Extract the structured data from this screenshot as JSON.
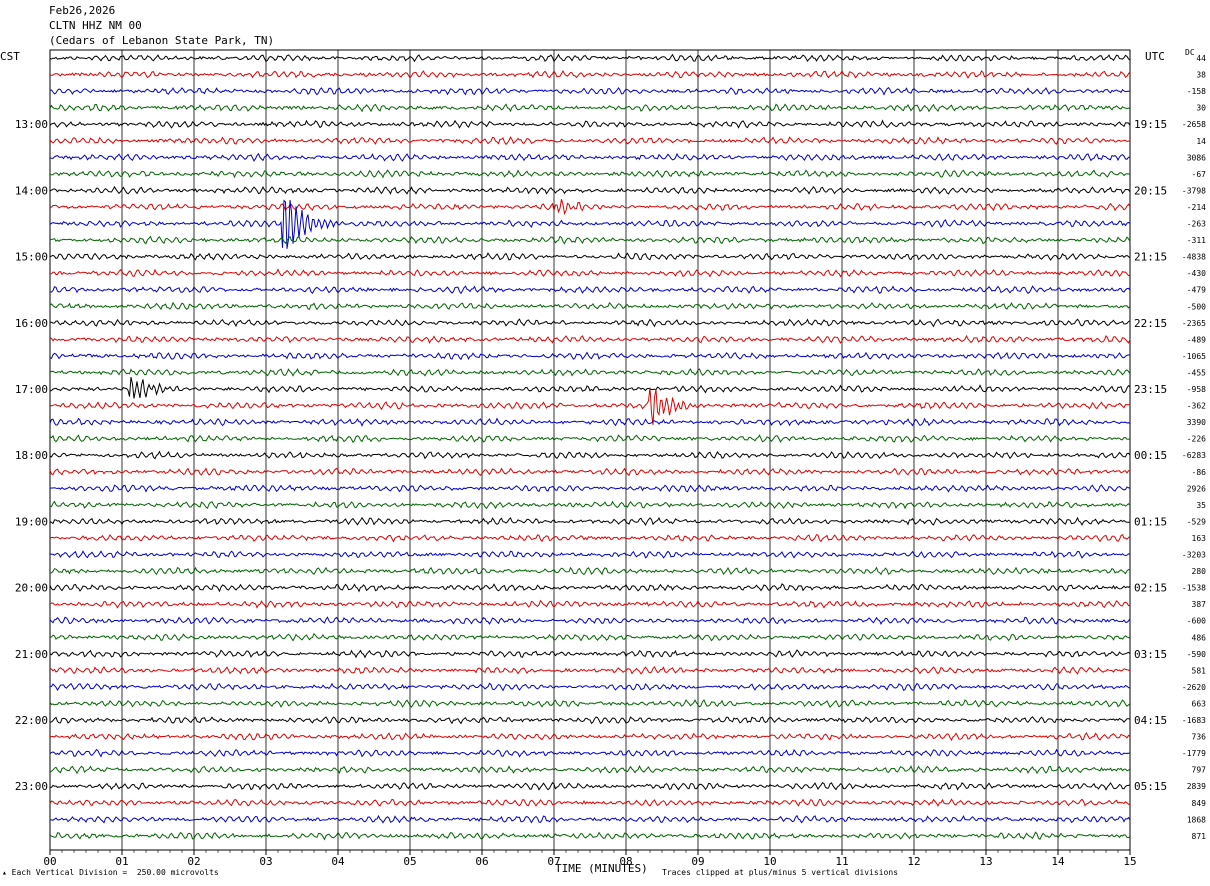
{
  "header": {
    "date": "Feb26,2026",
    "station": "CLTN HHZ NM 00",
    "location": "(Cedars of Lebanon State Park, TN)"
  },
  "axes": {
    "left_tz": "CST",
    "right_tz": "UTC",
    "dc_label": "DC",
    "xlabel": "TIME (MINUTES)",
    "x_ticks": [
      "00",
      "01",
      "02",
      "03",
      "04",
      "05",
      "06",
      "07",
      "08",
      "09",
      "10",
      "11",
      "12",
      "13",
      "14",
      "15"
    ],
    "left_times": [
      "13:00",
      "14:00",
      "15:00",
      "16:00",
      "17:00",
      "18:00",
      "19:00",
      "20:00",
      "21:00",
      "22:00",
      "23:00"
    ],
    "right_times": [
      "19:15",
      "20:15",
      "21:15",
      "22:15",
      "23:15",
      "00:15",
      "01:15",
      "02:15",
      "03:15",
      "04:15",
      "05:15"
    ]
  },
  "footer": {
    "scale_note": "Each Vertical Division =  250.00 microvolts",
    "clip_note": "Traces clipped at plus/minus 5 vertical divisions"
  },
  "colors": {
    "trace_cycle": [
      "#000000",
      "#e00000",
      "#0000cc",
      "#006400"
    ],
    "grid": "#000000"
  },
  "chart_data": {
    "type": "line",
    "title": "",
    "x_range": [
      0,
      15
    ],
    "x_unit": "minutes",
    "trace_count": 48,
    "dc_offsets": [
      "44",
      "38",
      "-158",
      "30",
      "-2658",
      "14",
      "3086",
      "-67",
      "-3798",
      "-214",
      "-263",
      "-311",
      "-4838",
      "-430",
      "-479",
      "-500",
      "-2365",
      "-489",
      "-1065",
      "-455",
      "-958",
      "-362",
      "3390",
      "-226",
      "-6283",
      "-86",
      "2926",
      "35",
      "-529",
      "163",
      "-3203",
      "280",
      "-1538",
      "387",
      "-600",
      "486",
      "-590",
      "581",
      "-2620",
      "663",
      "-1683",
      "736",
      "-1779",
      "797",
      "2839",
      "849",
      "1868",
      "871"
    ],
    "events": [
      {
        "trace": 10,
        "minute": 3.28,
        "amplitude_divisions": 5,
        "note": "large clipped spike"
      },
      {
        "trace": 20,
        "minute": 1.15,
        "amplitude_divisions": 2
      },
      {
        "trace": 21,
        "minute": 8.35,
        "amplitude_divisions": 3
      },
      {
        "trace": 9,
        "minute": 7.05,
        "amplitude_divisions": 1
      }
    ]
  }
}
